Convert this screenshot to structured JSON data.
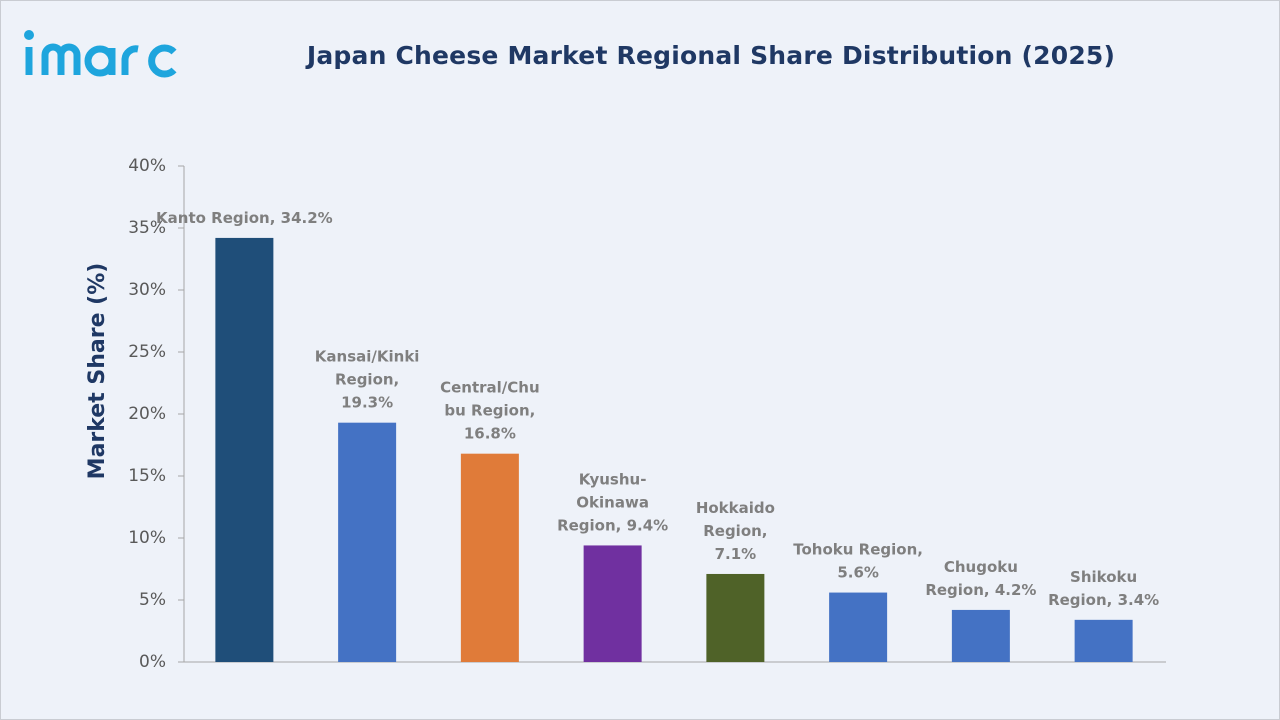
{
  "brand": {
    "logo_text": "imarc",
    "logo_color": "#1ea5dd"
  },
  "chart_data": {
    "type": "bar",
    "title": "Japan Cheese Market Regional Share Distribution (2025)",
    "xlabel": "",
    "ylabel": "Market Share (%)",
    "ylim": [
      0,
      40
    ],
    "y_ticks": [
      0,
      5,
      10,
      15,
      20,
      25,
      30,
      35,
      40
    ],
    "y_tick_labels": [
      "0%",
      "5%",
      "10%",
      "15%",
      "20%",
      "25%",
      "30%",
      "35%",
      "40%"
    ],
    "grid": false,
    "legend": "none",
    "categories": [
      "Kanto Region",
      "Kansai/Kinki Region",
      "Central/Chubu Region",
      "Kyushu-Okinawa Region",
      "Hokkaido Region",
      "Tohoku Region",
      "Chugoku Region",
      "Shikoku Region"
    ],
    "values": [
      34.2,
      19.3,
      16.8,
      9.4,
      7.1,
      5.6,
      4.2,
      3.4
    ],
    "colors": [
      "#1f4e79",
      "#4472c4",
      "#e07b39",
      "#7030a0",
      "#4f6228",
      "#4472c4",
      "#4472c4",
      "#4472c4"
    ],
    "data_labels": [
      [
        "Kanto Region, 34.2%"
      ],
      [
        "Kansai/Kinki",
        "Region,",
        "19.3%"
      ],
      [
        "Central/Chu",
        "bu Region,",
        "16.8%"
      ],
      [
        "Kyushu-",
        "Okinawa",
        "Region, 9.4%"
      ],
      [
        "Hokkaido",
        "Region,",
        "7.1%"
      ],
      [
        "Tohoku Region,",
        "5.6%"
      ],
      [
        "Chugoku",
        "Region, 4.2%"
      ],
      [
        "Shikoku",
        "Region, 3.4%"
      ]
    ]
  }
}
